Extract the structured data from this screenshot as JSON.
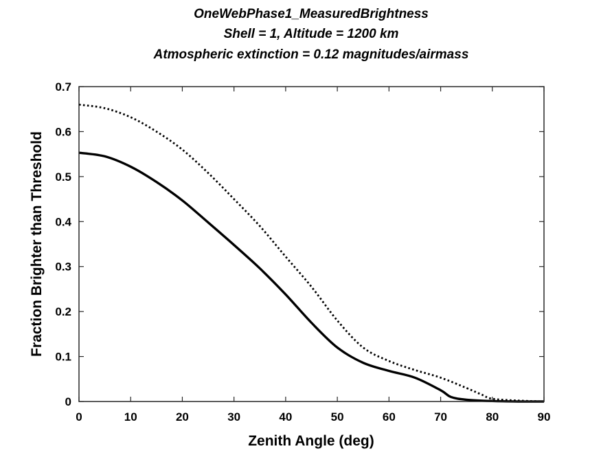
{
  "chart_data": {
    "type": "line",
    "title_lines": [
      "OneWebPhase1_MeasuredBrightness",
      "Shell = 1,  Altitude = 1200 km",
      "Atmospheric extinction = 0.12 magnitudes/airmass"
    ],
    "xlabel": "Zenith Angle (deg)",
    "ylabel": "Fraction Brighter than Threshold",
    "xlim": [
      0,
      90
    ],
    "ylim": [
      0,
      0.7
    ],
    "xticks": [
      0,
      10,
      20,
      30,
      40,
      50,
      60,
      70,
      80,
      90
    ],
    "yticks": [
      0,
      0.1,
      0.2,
      0.3,
      0.4,
      0.5,
      0.6,
      0.7
    ],
    "grid": false,
    "series": [
      {
        "style": "solid",
        "color": "#000000",
        "x": [
          0,
          5,
          10,
          15,
          20,
          25,
          30,
          35,
          40,
          45,
          50,
          55,
          60,
          65,
          70,
          72,
          75,
          80,
          85,
          90
        ],
        "y": [
          0.553,
          0.545,
          0.522,
          0.488,
          0.447,
          0.398,
          0.348,
          0.296,
          0.238,
          0.175,
          0.12,
          0.086,
          0.068,
          0.053,
          0.025,
          0.01,
          0.004,
          0.001,
          0.0,
          0.0
        ]
      },
      {
        "style": "dotted",
        "color": "#000000",
        "x": [
          0,
          5,
          10,
          15,
          20,
          25,
          30,
          35,
          40,
          45,
          50,
          55,
          60,
          65,
          70,
          75,
          78,
          80,
          85,
          90
        ],
        "y": [
          0.66,
          0.652,
          0.632,
          0.6,
          0.56,
          0.508,
          0.45,
          0.39,
          0.322,
          0.255,
          0.18,
          0.12,
          0.09,
          0.07,
          0.053,
          0.03,
          0.015,
          0.006,
          0.002,
          0.0
        ]
      }
    ]
  }
}
